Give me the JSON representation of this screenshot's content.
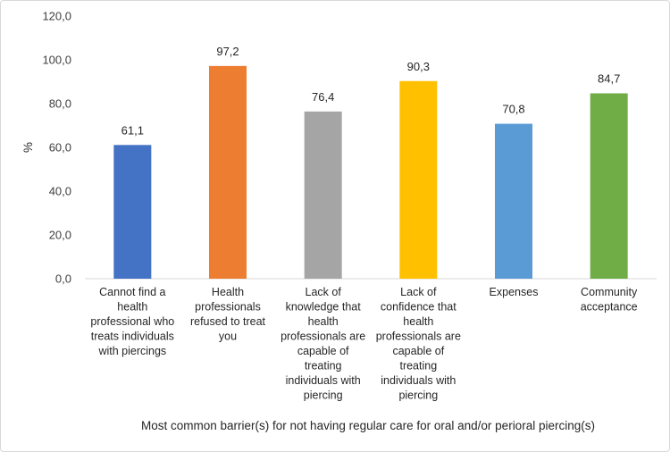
{
  "chart_data": {
    "type": "bar",
    "title": "",
    "xlabel": "Most common barrier(s) for not having regular care for oral and/or perioral piercing(s)",
    "ylabel": "%",
    "ylim": [
      0,
      120
    ],
    "yticks": [
      "0,0",
      "20,0",
      "40,0",
      "60,0",
      "80,0",
      "100,0",
      "120,0"
    ],
    "grid": false,
    "legend": "none",
    "categories": [
      "Cannot find a health professional who treats individuals with piercings",
      "Health professionals refused to treat you",
      "Lack of knowledge that health professionals are capable of treating individuals with piercing",
      "Lack of confidence that health professionals are capable of treating individuals with piercing",
      "Expenses",
      "Community acceptance"
    ],
    "category_lines": [
      [
        "Cannot find a",
        "health",
        "professional who",
        "treats individuals",
        "with piercings"
      ],
      [
        "Health",
        "professionals",
        "refused to treat",
        "you"
      ],
      [
        "Lack of",
        "knowledge that",
        "health",
        "professionals are",
        "capable of",
        "treating",
        "individuals with",
        "piercing"
      ],
      [
        "Lack of",
        "confidence that",
        "health",
        "professionals are",
        "capable of",
        "treating",
        "individuals with",
        "piercing"
      ],
      [
        "Expenses"
      ],
      [
        "Community",
        "acceptance"
      ]
    ],
    "values": [
      61.1,
      97.2,
      76.4,
      90.3,
      70.8,
      84.7
    ],
    "value_labels": [
      "61,1",
      "97,2",
      "76,4",
      "90,3",
      "70,8",
      "84,7"
    ],
    "colors": [
      "#4472C4",
      "#ED7D31",
      "#A5A5A5",
      "#FFC000",
      "#5B9BD5",
      "#70AD47"
    ]
  }
}
